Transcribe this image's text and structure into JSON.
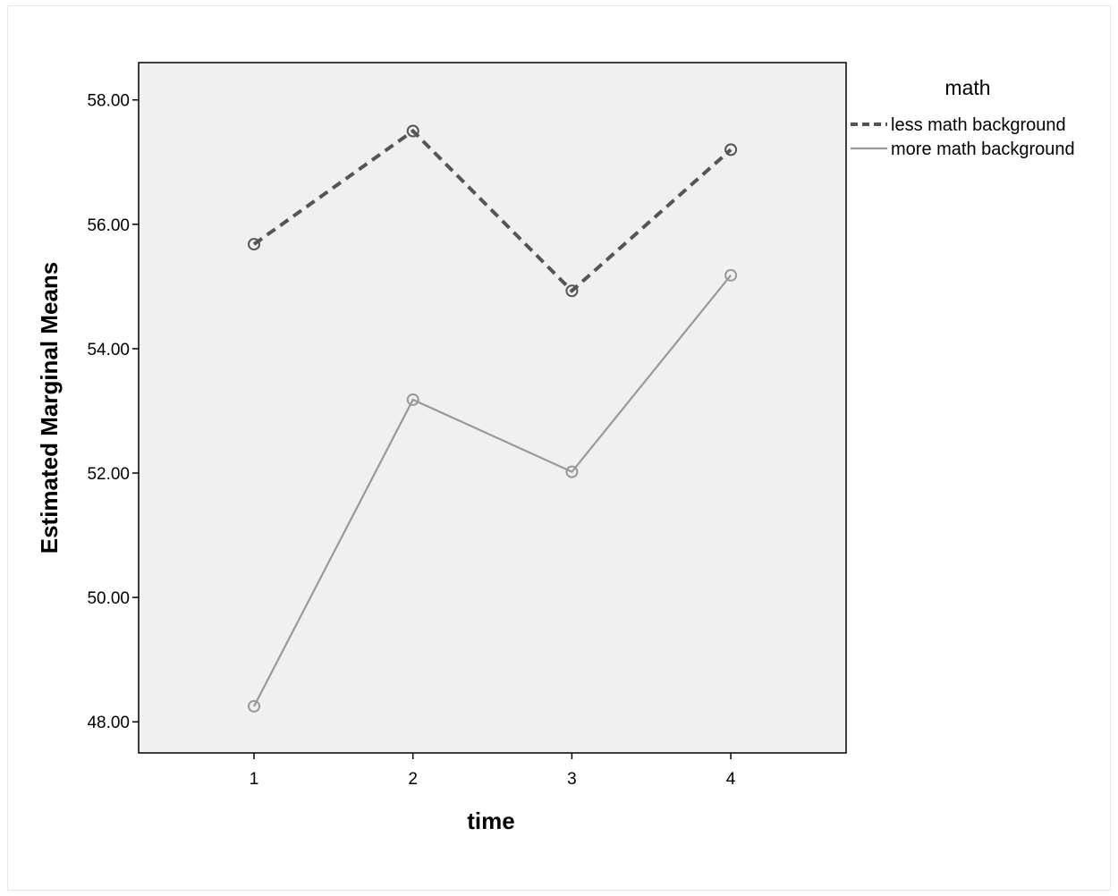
{
  "chart_data": {
    "type": "line",
    "xlabel": "time",
    "ylabel": "Estimated Marginal Means",
    "categories": [
      "1",
      "2",
      "3",
      "4"
    ],
    "ylim": [
      47.5,
      58.6
    ],
    "yticks": [
      "48.00",
      "50.00",
      "52.00",
      "54.00",
      "56.00",
      "58.00"
    ],
    "grid": false,
    "legend": {
      "title": "math",
      "position": "right"
    },
    "series": [
      {
        "name": "less math background",
        "values": [
          55.68,
          57.5,
          54.93,
          57.2
        ],
        "style": "dashed",
        "color": "#555555"
      },
      {
        "name": "more math background",
        "values": [
          48.25,
          53.18,
          52.02,
          55.18
        ],
        "style": "solid",
        "color": "#999999"
      }
    ],
    "plot_background": "#f0f0f0"
  }
}
